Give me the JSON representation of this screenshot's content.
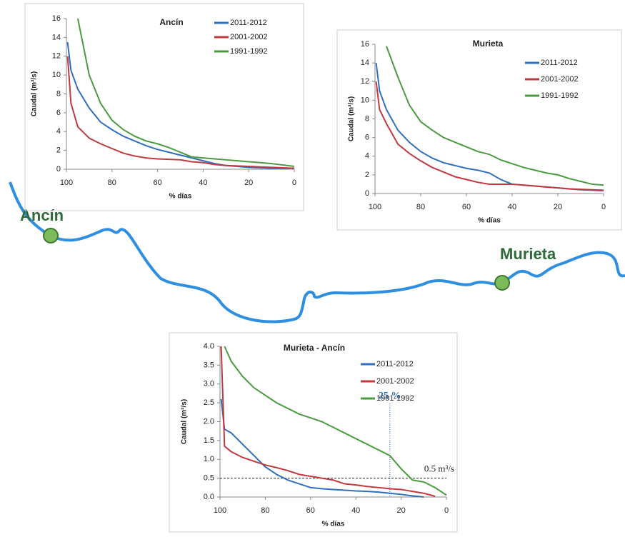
{
  "chart_data": [
    {
      "type": "line",
      "title": "Ancín",
      "y_label": "Caudal (m³/s)",
      "x_label": "% días",
      "x": [
        99.5,
        98,
        95,
        90,
        85,
        80,
        75,
        70,
        65,
        60,
        55,
        50,
        45,
        40,
        35,
        30,
        25,
        20,
        15,
        10,
        5,
        0
      ],
      "xlim": [
        100,
        0
      ],
      "xticks": [
        100,
        80,
        60,
        40,
        20,
        0
      ],
      "ylim": [
        0,
        16
      ],
      "yticks": [
        0,
        2,
        4,
        6,
        8,
        10,
        12,
        14,
        16
      ],
      "series": [
        {
          "name": "2011-2012",
          "color": "#2e6fbf",
          "values": [
            13.5,
            10.5,
            8.5,
            6.5,
            5,
            4.2,
            3.5,
            3,
            2.5,
            2.1,
            1.8,
            1.5,
            1.2,
            0.9,
            0.6,
            0.4,
            0.3,
            0.2,
            0.15,
            0.1,
            0.1,
            0.1
          ]
        },
        {
          "name": "2001-2002",
          "color": "#c0393f",
          "values": [
            12,
            7,
            4.5,
            3.3,
            2.7,
            2.2,
            1.7,
            1.4,
            1.2,
            1.1,
            1.05,
            1,
            0.8,
            0.7,
            0.5,
            0.4,
            0.35,
            0.3,
            0.25,
            0.2,
            0.15,
            0.1
          ]
        },
        {
          "name": "1991-1992",
          "color": "#4a9a3f",
          "values": [
            null,
            null,
            16,
            10,
            7,
            5.2,
            4.2,
            3.5,
            3,
            2.7,
            2.3,
            1.8,
            1.3,
            1.2,
            1.1,
            1,
            0.9,
            0.8,
            0.7,
            0.6,
            0.45,
            0.3
          ]
        }
      ]
    },
    {
      "type": "line",
      "title": "Murieta",
      "y_label": "Caudal (m³/s)",
      "x_label": "% días",
      "x": [
        99.5,
        98,
        95,
        90,
        85,
        80,
        75,
        70,
        65,
        60,
        55,
        50,
        45,
        40,
        35,
        30,
        25,
        20,
        15,
        10,
        5,
        0
      ],
      "xlim": [
        100,
        0
      ],
      "xticks": [
        100,
        80,
        60,
        40,
        20,
        0
      ],
      "ylim": [
        0,
        16
      ],
      "yticks": [
        0,
        2,
        4,
        6,
        8,
        10,
        12,
        14,
        16
      ],
      "series": [
        {
          "name": "2011-2012",
          "color": "#2e6fbf",
          "values": [
            14,
            11,
            9,
            6.8,
            5.5,
            4.5,
            3.8,
            3.3,
            3,
            2.7,
            2.5,
            2.2,
            1.5,
            1,
            0.9,
            0.8,
            0.7,
            0.6,
            0.5,
            0.4,
            0.35,
            0.3
          ]
        },
        {
          "name": "2001-2002",
          "color": "#c0393f",
          "values": [
            12,
            9,
            7.5,
            5.3,
            4.3,
            3.5,
            2.8,
            2.3,
            1.8,
            1.5,
            1.2,
            1,
            1,
            1,
            0.9,
            0.8,
            0.7,
            0.6,
            0.5,
            0.45,
            0.4,
            0.35
          ]
        },
        {
          "name": "1991-1992",
          "color": "#4a9a3f",
          "values": [
            null,
            null,
            15.8,
            12.5,
            9.5,
            7.7,
            6.8,
            6,
            5.5,
            5,
            4.5,
            4.2,
            3.6,
            3.2,
            2.8,
            2.5,
            2.2,
            2,
            1.6,
            1.3,
            1,
            0.9
          ]
        }
      ]
    },
    {
      "type": "line",
      "title": "Murieta - Ancín",
      "y_label": "Caudal (m³/s)",
      "x_label": "% días",
      "x": [
        99.5,
        98,
        95,
        90,
        85,
        80,
        75,
        70,
        65,
        60,
        55,
        50,
        45,
        40,
        35,
        30,
        25,
        20,
        15,
        10,
        5,
        0
      ],
      "xlim": [
        100,
        0
      ],
      "xticks": [
        100,
        80,
        60,
        40,
        20,
        0
      ],
      "ylim": [
        0,
        4
      ],
      "yticks": [
        {
          "value": 0,
          "label": "0.0"
        },
        0.5,
        {
          "value": 1,
          "label": "1.0"
        },
        1.5,
        {
          "value": 2,
          "label": "2.0"
        },
        2.5,
        {
          "value": 3,
          "label": "3.0"
        },
        3.5,
        {
          "value": 4,
          "label": "4.0"
        }
      ],
      "series": [
        {
          "name": "2011-2012",
          "color": "#2e6fbf",
          "values": [
            2.6,
            1.8,
            1.7,
            1.4,
            1.1,
            0.8,
            0.6,
            0.45,
            0.35,
            0.25,
            0.22,
            0.2,
            0.18,
            0.16,
            0.15,
            0.13,
            0.1,
            0.07,
            0.03,
            0,
            null,
            null
          ]
        },
        {
          "name": "2001-2002",
          "color": "#c0393f",
          "values": [
            4,
            1.35,
            1.2,
            1.05,
            0.95,
            0.85,
            0.78,
            0.7,
            0.6,
            0.55,
            0.5,
            0.45,
            0.35,
            0.32,
            0.28,
            0.25,
            0.22,
            0.2,
            0.15,
            0.1,
            0.02,
            null
          ]
        },
        {
          "name": "1991-1992",
          "color": "#4a9a3f",
          "values": [
            null,
            4,
            3.6,
            3.2,
            2.9,
            2.7,
            2.5,
            2.35,
            2.2,
            2.1,
            2,
            1.85,
            1.7,
            1.55,
            1.4,
            1.25,
            1.1,
            0.75,
            0.45,
            0.4,
            0.25,
            0.05
          ]
        }
      ],
      "annotations": [
        {
          "text": "25 %",
          "x": 25
        },
        {
          "text": "0.5 m³/s",
          "y": 0.5
        }
      ]
    }
  ],
  "map_labels": [
    "Ancín",
    "Murieta"
  ]
}
